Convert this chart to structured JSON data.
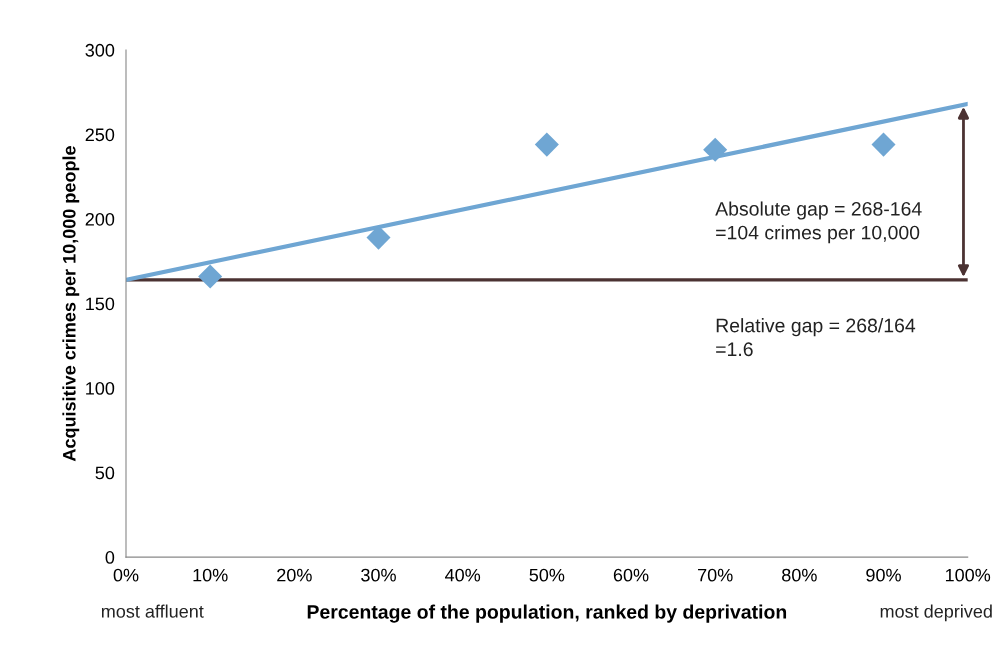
{
  "chart_data": {
    "type": "scatter",
    "xlabel": "Percentage of the population, ranked by deprivation",
    "ylabel": "Acquisitive crimes per 10,000 people",
    "xlim": [
      0,
      100
    ],
    "ylim": [
      0,
      300
    ],
    "xticks": [
      {
        "value": 0,
        "label": "0%"
      },
      {
        "value": 10,
        "label": "10%"
      },
      {
        "value": 20,
        "label": "20%"
      },
      {
        "value": 30,
        "label": "30%"
      },
      {
        "value": 40,
        "label": "40%"
      },
      {
        "value": 50,
        "label": "50%"
      },
      {
        "value": 60,
        "label": "60%"
      },
      {
        "value": 70,
        "label": "70%"
      },
      {
        "value": 80,
        "label": "80%"
      },
      {
        "value": 90,
        "label": "90%"
      },
      {
        "value": 100,
        "label": "100%"
      }
    ],
    "yticks": [
      0,
      50,
      100,
      150,
      200,
      250,
      300
    ],
    "grid": false,
    "series": [
      {
        "color": "#6fa6d3",
        "marker": "diamond",
        "x": [
          10,
          30,
          50,
          70,
          90
        ],
        "values": [
          166,
          189,
          244,
          241,
          244
        ]
      },
      {
        "type": "line",
        "color": "#6fa6d3",
        "marker": "none",
        "x": [
          0,
          100
        ],
        "values": [
          164,
          268
        ]
      }
    ],
    "ref_lines": [
      {
        "axis": "y",
        "value": 164,
        "color": "#4b3232"
      }
    ],
    "annotations": [
      "Absolute gap = 268-164\n=104 crimes per 10,000",
      "Relative gap = 268/164\n=1.6",
      "most affluent",
      "most deprived"
    ]
  }
}
